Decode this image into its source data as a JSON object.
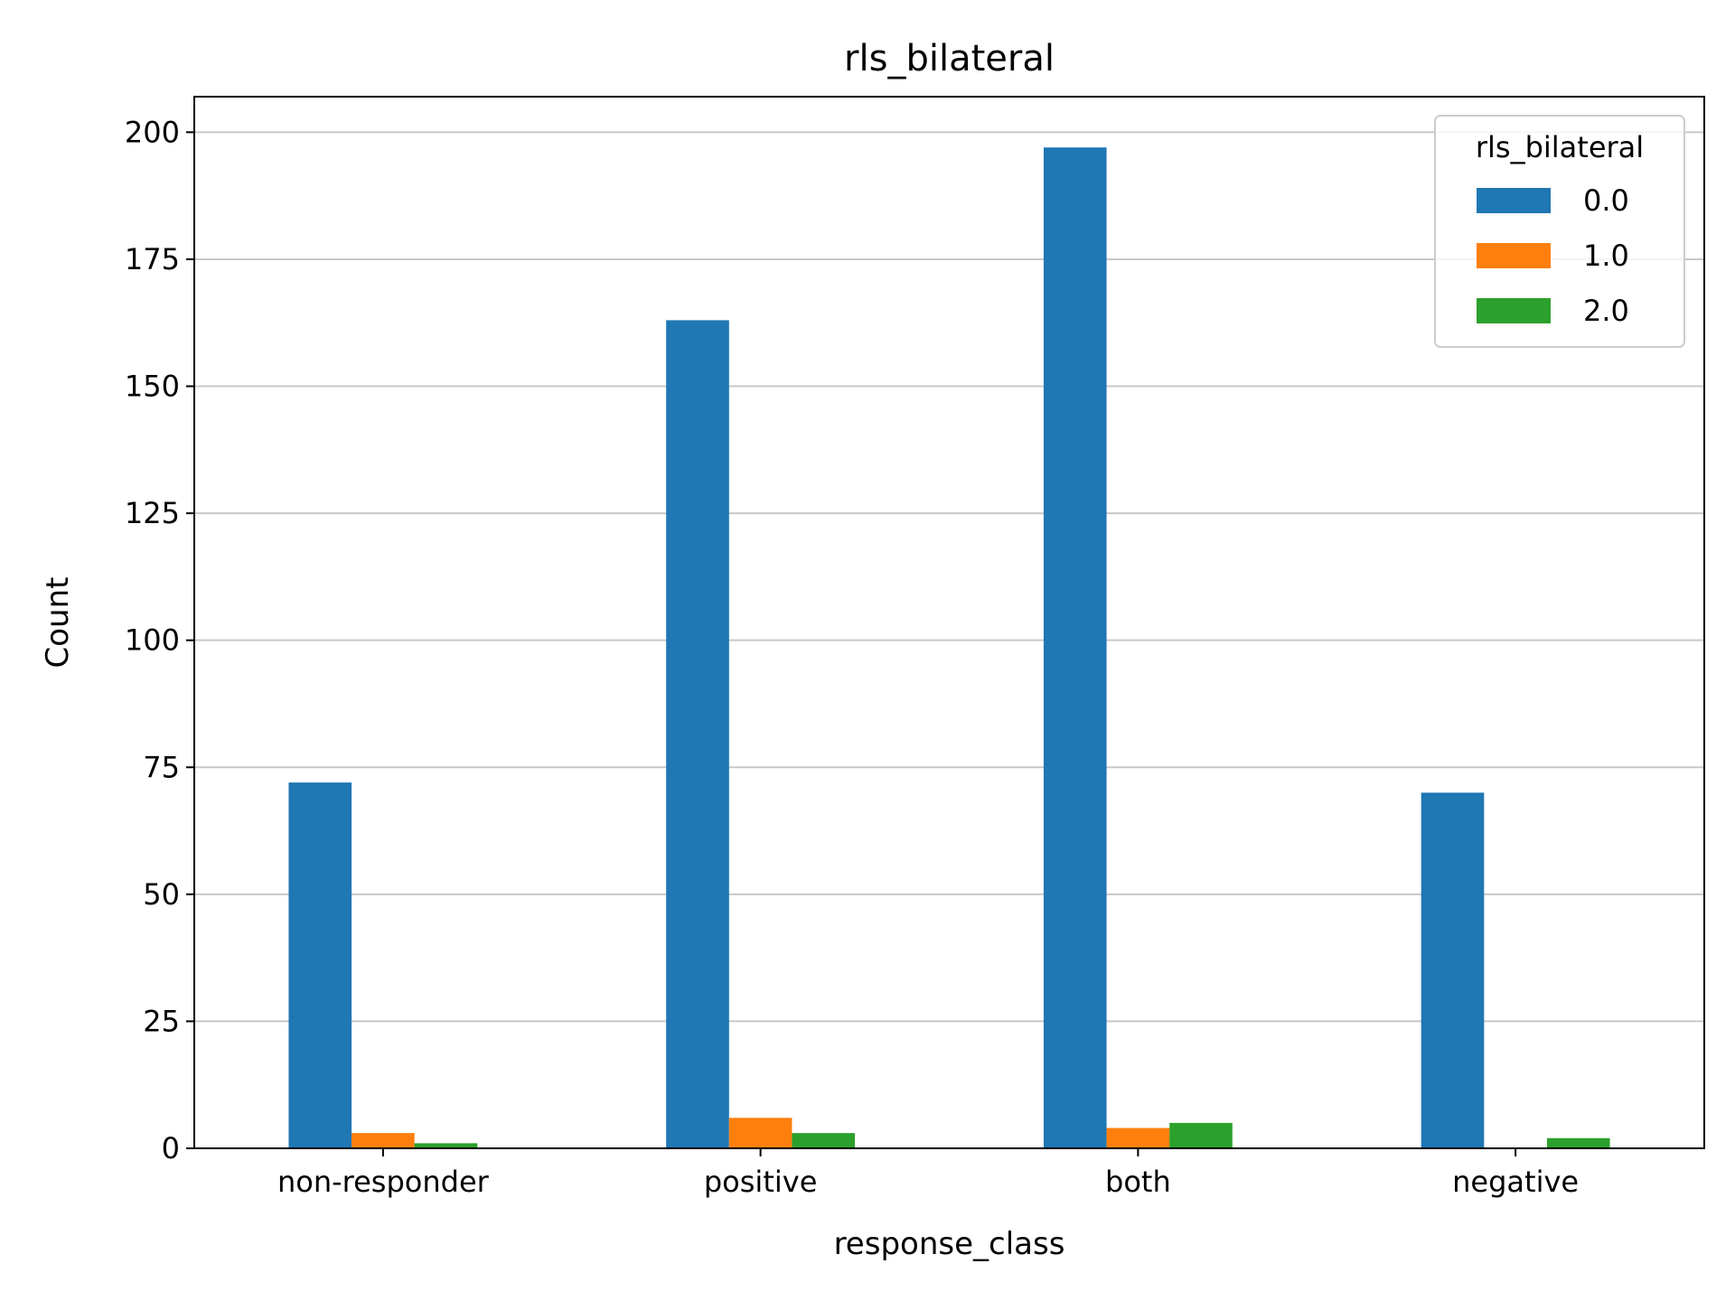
{
  "chart_data": {
    "type": "bar",
    "title": "rls_bilateral",
    "xlabel": "response_class",
    "ylabel": "Count",
    "categories": [
      "non-responder",
      "positive",
      "both",
      "negative"
    ],
    "ylim": [
      0,
      207
    ],
    "yticks": [
      0,
      25,
      50,
      75,
      100,
      125,
      150,
      175,
      200
    ],
    "grid": "y",
    "legend": {
      "title": "rls_bilateral",
      "placement": "top-right"
    },
    "series": [
      {
        "name": "0.0",
        "color": "#1f77b4",
        "values": [
          72,
          163,
          197,
          70
        ]
      },
      {
        "name": "1.0",
        "color": "#ff7f0e",
        "values": [
          3,
          6,
          4,
          0
        ]
      },
      {
        "name": "2.0",
        "color": "#2ca02c",
        "values": [
          1,
          3,
          5,
          2
        ]
      }
    ]
  }
}
